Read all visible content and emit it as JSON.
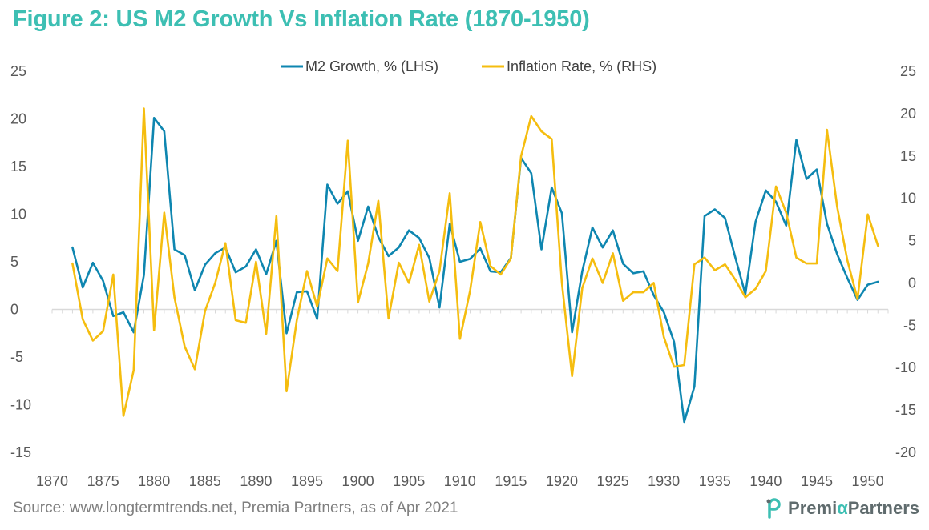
{
  "title": "Figure 2: US M2 Growth Vs Inflation Rate (1870-1950)",
  "source": "Source: www.longtermtrends.net,  Premia Partners, as of Apr 2021",
  "brand": {
    "name_part1": "Premi",
    "name_alpha": "α",
    "name_part2": "Partners",
    "logo_icon": "premia-p-icon"
  },
  "colors": {
    "m2": "#0e86b0",
    "inflation": "#f5bd0f",
    "title": "#3dbfb3",
    "axis": "#d9d9d9"
  },
  "chart_data": {
    "type": "line",
    "legend_position": "top",
    "grid": false,
    "x_ticks": [
      1870,
      1875,
      1880,
      1885,
      1890,
      1895,
      1900,
      1905,
      1910,
      1915,
      1920,
      1925,
      1930,
      1935,
      1940,
      1945,
      1950
    ],
    "xlim": [
      1870,
      1952
    ],
    "left_axis": {
      "ylim": [
        -15,
        25
      ],
      "ticks": [
        25,
        20,
        15,
        10,
        5,
        0,
        -5,
        -10,
        -15
      ]
    },
    "right_axis": {
      "ylim": [
        -20,
        25
      ],
      "ticks": [
        25,
        20,
        15,
        10,
        5,
        0,
        -5,
        -10,
        -15,
        -20
      ]
    },
    "series": [
      {
        "name": "M2 Growth, % (LHS)",
        "axis": "left",
        "x": [
          1872,
          1873,
          1874,
          1875,
          1876,
          1877,
          1878,
          1879,
          1880,
          1881,
          1882,
          1883,
          1884,
          1885,
          1886,
          1887,
          1888,
          1889,
          1890,
          1891,
          1892,
          1893,
          1894,
          1895,
          1896,
          1897,
          1898,
          1899,
          1900,
          1901,
          1902,
          1903,
          1904,
          1905,
          1906,
          1907,
          1908,
          1909,
          1910,
          1911,
          1912,
          1913,
          1914,
          1915,
          1916,
          1917,
          1918,
          1919,
          1920,
          1921,
          1922,
          1923,
          1924,
          1925,
          1926,
          1927,
          1928,
          1929,
          1930,
          1931,
          1932,
          1933,
          1934,
          1935,
          1936,
          1937,
          1938,
          1939,
          1940,
          1941,
          1942,
          1943,
          1944,
          1945,
          1946,
          1947,
          1948,
          1949,
          1950,
          1951
        ],
        "y": [
          6.5,
          2.3,
          4.9,
          3.0,
          -0.7,
          -0.3,
          -2.4,
          3.6,
          20.1,
          18.7,
          6.3,
          5.7,
          2.0,
          4.7,
          5.9,
          6.5,
          3.9,
          4.5,
          6.3,
          3.7,
          7.2,
          -2.5,
          1.8,
          1.9,
          -1.0,
          13.1,
          11.1,
          12.4,
          7.2,
          10.8,
          7.6,
          5.6,
          6.5,
          8.3,
          7.5,
          5.4,
          0.2,
          9.0,
          5.0,
          5.3,
          6.4,
          4.0,
          3.9,
          5.4,
          15.9,
          14.3,
          6.3,
          12.8,
          10.1,
          -2.4,
          4.0,
          8.6,
          6.5,
          8.3,
          4.8,
          3.8,
          4.0,
          1.5,
          -0.3,
          -3.4,
          -11.8,
          -8.1,
          9.8,
          10.5,
          9.6,
          5.5,
          1.6,
          9.2,
          12.5,
          11.3,
          8.8,
          17.8,
          13.7,
          14.7,
          9.0,
          5.8,
          3.3,
          1.0,
          2.6,
          2.9
        ]
      },
      {
        "name": "Inflation Rate, % (RHS)",
        "axis": "right",
        "x": [
          1872,
          1873,
          1874,
          1875,
          1876,
          1877,
          1878,
          1879,
          1880,
          1881,
          1882,
          1883,
          1884,
          1885,
          1886,
          1887,
          1888,
          1889,
          1890,
          1891,
          1892,
          1893,
          1894,
          1895,
          1896,
          1897,
          1898,
          1899,
          1900,
          1901,
          1902,
          1903,
          1904,
          1905,
          1906,
          1907,
          1908,
          1909,
          1910,
          1911,
          1912,
          1913,
          1914,
          1915,
          1916,
          1917,
          1918,
          1919,
          1920,
          1921,
          1922,
          1923,
          1924,
          1925,
          1926,
          1927,
          1928,
          1929,
          1930,
          1931,
          1932,
          1933,
          1934,
          1935,
          1936,
          1937,
          1938,
          1939,
          1940,
          1941,
          1942,
          1943,
          1944,
          1945,
          1946,
          1947,
          1948,
          1949,
          1950,
          1951
        ],
        "y": [
          2.3,
          -4.3,
          -6.8,
          -5.7,
          1.0,
          -15.7,
          -10.3,
          20.6,
          -5.6,
          8.3,
          -1.7,
          -7.5,
          -10.2,
          -3.3,
          0.0,
          4.7,
          -4.4,
          -4.7,
          2.5,
          -6.0,
          7.9,
          -12.8,
          -4.4,
          1.4,
          -2.8,
          2.9,
          1.4,
          16.8,
          -2.3,
          2.3,
          9.7,
          -4.2,
          2.4,
          0.0,
          4.5,
          -2.2,
          1.4,
          10.6,
          -6.6,
          -0.9,
          7.2,
          2.0,
          1.0,
          2.9,
          15.0,
          19.7,
          17.9,
          17.0,
          0.0,
          -11.0,
          -0.6,
          2.9,
          0.0,
          3.5,
          -2.1,
          -1.1,
          -1.1,
          0.0,
          -6.4,
          -9.9,
          -9.7,
          2.2,
          3.0,
          1.5,
          2.2,
          0.4,
          -1.7,
          -0.7,
          1.4,
          11.4,
          8.3,
          3.0,
          2.3,
          2.3,
          18.1,
          9.0,
          2.7,
          -1.9,
          8.1,
          4.4
        ]
      }
    ]
  }
}
